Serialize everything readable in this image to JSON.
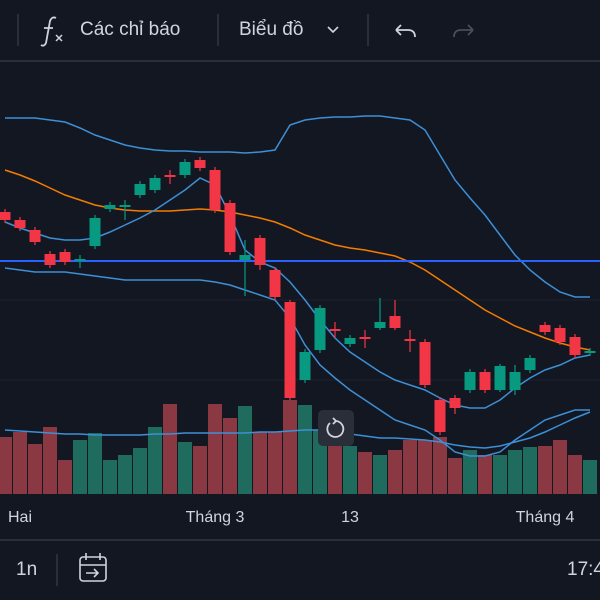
{
  "toolbar": {
    "indicators": "Các chỉ báo",
    "chart_menu": "Biểu đồ"
  },
  "footer": {
    "interval": "1n",
    "time": "17:4"
  },
  "chart_data": {
    "type": "candlestick",
    "categories": [
      null,
      "Hai",
      null,
      null,
      null,
      null,
      null,
      null,
      null,
      null,
      null,
      null,
      null,
      null,
      "Tháng 3",
      null,
      null,
      null,
      null,
      null,
      null,
      null,
      null,
      "13",
      null,
      null,
      null,
      null,
      null,
      null,
      null,
      null,
      null,
      null,
      null,
      null,
      "Tháng 4",
      null,
      null,
      null
    ],
    "open": [
      283,
      275,
      265,
      241,
      243,
      234,
      249,
      286,
      288,
      300,
      305,
      320,
      320,
      335,
      325,
      292,
      235,
      257,
      225,
      193,
      115,
      145,
      166,
      151,
      158,
      167,
      179,
      156,
      153,
      95,
      97,
      105,
      123,
      105,
      105,
      125,
      170,
      167,
      158,
      142
    ],
    "close": [
      275,
      267,
      253,
      230,
      233,
      236,
      277,
      290,
      290,
      311,
      317,
      318,
      333,
      327,
      285,
      243,
      240,
      230,
      198,
      97,
      143,
      187,
      164,
      157,
      156,
      173,
      167,
      154,
      110,
      63,
      87,
      123,
      105,
      129,
      123,
      137,
      163,
      153,
      140,
      144
    ],
    "high": [
      286,
      278,
      268,
      244,
      246,
      240,
      280,
      293,
      295,
      314,
      320,
      325,
      336,
      338,
      328,
      295,
      255,
      260,
      228,
      195,
      146,
      190,
      173,
      160,
      165,
      197,
      195,
      165,
      156,
      98,
      100,
      126,
      126,
      131,
      130,
      140,
      173,
      170,
      161,
      147
    ],
    "low": [
      272,
      264,
      250,
      227,
      230,
      227,
      246,
      283,
      275,
      297,
      302,
      311,
      317,
      324,
      282,
      240,
      199,
      225,
      195,
      95,
      112,
      142,
      157,
      148,
      147,
      165,
      165,
      143,
      107,
      60,
      81,
      102,
      102,
      103,
      100,
      122,
      160,
      150,
      137,
      139
    ],
    "volume": [
      57,
      62,
      50,
      67,
      34,
      54,
      61,
      34,
      39,
      46,
      67,
      90,
      52,
      48,
      90,
      76,
      88,
      62,
      62,
      94,
      89,
      64,
      50,
      48,
      42,
      39,
      44,
      54,
      54,
      57,
      36,
      44,
      39,
      39,
      44,
      47,
      48,
      54,
      39,
      34
    ],
    "ylim": [
      0,
      433
    ],
    "vlim": [
      0,
      100
    ],
    "up_color": "#089981",
    "down_color": "#f23645",
    "up_volume_color": "#1f6b5e",
    "down_volume_color": "#8a3842",
    "price_line": {
      "value": 234,
      "color": "#2962ff"
    },
    "lines": [
      {
        "color": "#3d8fd6",
        "scale": "price",
        "values": [
          377,
          377,
          377,
          375,
          373,
          367,
          360,
          355,
          350,
          347,
          345,
          344,
          344,
          343,
          343,
          343,
          342,
          343,
          345,
          370,
          375,
          377,
          378,
          378,
          379,
          379,
          377,
          375,
          365,
          340,
          315,
          297,
          280,
          260,
          240,
          225,
          213,
          203,
          198,
          198
        ]
      },
      {
        "color": "#f57c00",
        "scale": "price",
        "values": [
          325,
          320,
          314,
          307,
          300,
          295,
          290,
          287,
          285,
          284,
          284,
          284,
          285,
          286,
          285,
          283,
          280,
          277,
          273,
          267,
          260,
          255,
          250,
          247,
          245,
          242,
          239,
          233,
          225,
          215,
          205,
          195,
          185,
          177,
          169,
          163,
          157,
          152,
          148,
          145
        ]
      },
      {
        "color": "#3d8fd6",
        "scale": "price",
        "values": [
          273,
          267,
          262,
          257,
          255,
          255,
          257,
          263,
          270,
          277,
          285,
          295,
          305,
          317,
          310,
          280,
          245,
          233,
          227,
          213,
          195,
          175,
          157,
          143,
          133,
          123,
          115,
          110,
          105,
          97,
          90,
          87,
          87,
          95,
          107,
          117,
          125,
          130,
          137,
          140
        ]
      },
      {
        "color": "#3d8fd6",
        "scale": "price",
        "values": [
          227,
          225,
          223,
          223,
          223,
          221,
          219,
          217,
          215,
          215,
          215,
          215,
          215,
          215,
          213,
          210,
          205,
          200,
          195,
          177,
          150,
          130,
          117,
          105,
          95,
          85,
          75,
          70,
          65,
          55,
          43,
          39,
          39,
          43,
          55,
          65,
          75,
          80,
          85,
          85
        ]
      },
      {
        "color": "#3d8fd6",
        "scale": "volume",
        "values": [
          64,
          63,
          62,
          61,
          60,
          60,
          59,
          59,
          59,
          59,
          60,
          60,
          61,
          61,
          61,
          61,
          61,
          62,
          62,
          63,
          64,
          64,
          62,
          60,
          58,
          56,
          56,
          55,
          54,
          52,
          49,
          47,
          46,
          48,
          52,
          56,
          62,
          69,
          76,
          82
        ]
      }
    ]
  }
}
